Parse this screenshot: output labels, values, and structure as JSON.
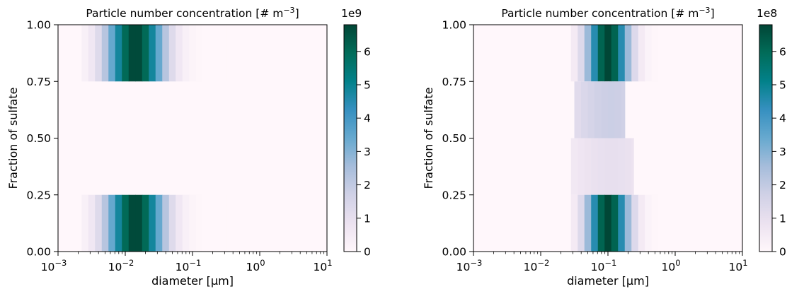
{
  "colors": {
    "cmap": [
      "#fff7fb",
      "#ece2f0",
      "#d0d1e6",
      "#a6bddb",
      "#67a9cf",
      "#3690c0",
      "#02818a",
      "#016c59",
      "#014636"
    ]
  },
  "chart_data": [
    {
      "type": "heatmap",
      "title": "Particle number concentration [# m",
      "title_sup": "−3",
      "title_end": "]",
      "xlabel": "diameter [µm]",
      "ylabel": "Fraction of sulfate",
      "x_scale": "log",
      "x_lim": [
        0.001,
        10
      ],
      "y_lim": [
        0,
        1
      ],
      "x_ticks": [
        {
          "value": 0.001,
          "base": "10",
          "exp": "−3"
        },
        {
          "value": 0.01,
          "base": "10",
          "exp": "−2"
        },
        {
          "value": 0.1,
          "base": "10",
          "exp": "−1"
        },
        {
          "value": 1,
          "base": "10",
          "exp": "0"
        },
        {
          "value": 10,
          "base": "10",
          "exp": "1"
        }
      ],
      "y_ticks": [
        {
          "value": 0,
          "label": "0.00"
        },
        {
          "value": 0.25,
          "label": "0.25"
        },
        {
          "value": 0.5,
          "label": "0.50"
        },
        {
          "value": 0.75,
          "label": "0.75"
        },
        {
          "value": 1,
          "label": "1.00"
        }
      ],
      "colorbar": {
        "multiplier": "1e9",
        "vmin": 0,
        "vmax": 6.8,
        "ticks": [
          {
            "value": 0,
            "label": "0"
          },
          {
            "value": 1,
            "label": "1"
          },
          {
            "value": 2,
            "label": "2"
          },
          {
            "value": 3,
            "label": "3"
          },
          {
            "value": 4,
            "label": "4"
          },
          {
            "value": 5,
            "label": "5"
          },
          {
            "value": 6,
            "label": "6"
          }
        ]
      },
      "bands": [
        {
          "y_range": [
            0.75,
            1.0
          ],
          "center_log10": -1.85,
          "sigma_log10": 0.3,
          "peak": 6.8,
          "x_cut_log10": -0.5,
          "x_start_log10": -2.65
        },
        {
          "y_range": [
            0.5,
            0.75
          ],
          "peak": 0
        },
        {
          "y_range": [
            0.25,
            0.5
          ],
          "peak": 0
        },
        {
          "y_range": [
            0.0,
            0.25
          ],
          "center_log10": -1.85,
          "sigma_log10": 0.3,
          "peak": 6.8,
          "x_cut_log10": -0.5,
          "x_start_log10": -2.65
        }
      ]
    },
    {
      "type": "heatmap",
      "title": "Particle number concentration [# m",
      "title_sup": "−3",
      "title_end": "]",
      "xlabel": "diameter [µm]",
      "ylabel": "Fraction of sulfate",
      "x_scale": "log",
      "x_lim": [
        0.001,
        10
      ],
      "y_lim": [
        0,
        1
      ],
      "x_ticks": [
        {
          "value": 0.001,
          "base": "10",
          "exp": "−3"
        },
        {
          "value": 0.01,
          "base": "10",
          "exp": "−2"
        },
        {
          "value": 0.1,
          "base": "10",
          "exp": "−1"
        },
        {
          "value": 1,
          "base": "10",
          "exp": "0"
        },
        {
          "value": 10,
          "base": "10",
          "exp": "1"
        }
      ],
      "y_ticks": [
        {
          "value": 0,
          "label": "0.00"
        },
        {
          "value": 0.25,
          "label": "0.25"
        },
        {
          "value": 0.5,
          "label": "0.50"
        },
        {
          "value": 0.75,
          "label": "0.75"
        },
        {
          "value": 1,
          "label": "1.00"
        }
      ],
      "colorbar": {
        "multiplier": "1e8",
        "vmin": 0,
        "vmax": 6.8,
        "ticks": [
          {
            "value": 0,
            "label": "0"
          },
          {
            "value": 1,
            "label": "1"
          },
          {
            "value": 2,
            "label": "2"
          },
          {
            "value": 3,
            "label": "3"
          },
          {
            "value": 4,
            "label": "4"
          },
          {
            "value": 5,
            "label": "5"
          },
          {
            "value": 6,
            "label": "6"
          }
        ]
      },
      "bands": [
        {
          "y_range": [
            0.75,
            1.0
          ],
          "center_log10": -1.0,
          "sigma_log10": 0.22,
          "peak": 6.8,
          "x_cut_log10": -0.2,
          "x_start_log10": -1.55
        },
        {
          "y_range": [
            0.5,
            0.75
          ],
          "center_log10": -0.95,
          "sigma_log10": 0.55,
          "peak": 1.8,
          "x_cut_log10": -0.75,
          "x_start_log10": -1.5
        },
        {
          "y_range": [
            0.25,
            0.5
          ],
          "center_log10": -0.95,
          "sigma_log10": 0.55,
          "peak": 1.0,
          "x_cut_log10": -0.62,
          "x_start_log10": -1.55
        },
        {
          "y_range": [
            0.0,
            0.25
          ],
          "center_log10": -1.0,
          "sigma_log10": 0.22,
          "peak": 6.8,
          "x_cut_log10": -0.2,
          "x_start_log10": -1.55
        }
      ]
    }
  ]
}
